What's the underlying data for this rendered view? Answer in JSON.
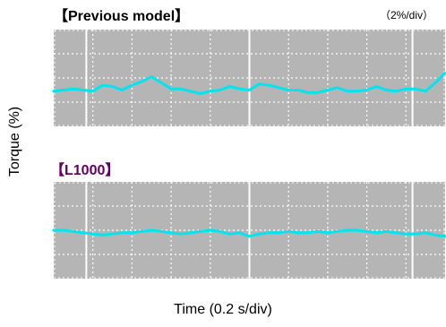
{
  "labels": {
    "scale": "（2%/div）",
    "y_axis": "Torque (%)",
    "x_axis": "Time (0.2 s/div)"
  },
  "colors": {
    "panel_bg": "#b5b5b5",
    "grid_major": "#ffffff",
    "trace": "#00e5f0",
    "l1000_title": "#660066"
  },
  "chart_data": [
    {
      "type": "line",
      "title": "【Previous model】",
      "xlabel": "Time (0.2 s/div)",
      "ylabel": "Torque (%)",
      "grid": true,
      "xlim": [
        0,
        10
      ],
      "ylim": [
        -5,
        3
      ],
      "x": [
        0,
        0.25,
        0.5,
        0.75,
        1,
        1.25,
        1.5,
        1.75,
        2,
        2.25,
        2.5,
        2.75,
        3,
        3.25,
        3.5,
        3.75,
        4,
        4.25,
        4.5,
        4.75,
        5,
        5.25,
        5.5,
        5.75,
        6,
        6.25,
        6.5,
        6.75,
        7,
        7.25,
        7.5,
        7.75,
        8,
        8.25,
        8.5,
        8.75,
        9,
        9.25,
        9.5,
        9.75,
        10
      ],
      "series": [
        {
          "values": [
            -2.1,
            -2.0,
            -1.9,
            -2.0,
            -2.1,
            -1.6,
            -1.7,
            -2.0,
            -1.6,
            -1.3,
            -0.9,
            -1.4,
            -1.9,
            -1.9,
            -2.1,
            -2.3,
            -2.1,
            -2.0,
            -1.7,
            -1.9,
            -2.0,
            -1.5,
            -1.6,
            -1.8,
            -2.0,
            -2.0,
            -2.2,
            -2.2,
            -2.0,
            -1.8,
            -2.1,
            -2.1,
            -2.0,
            -1.7,
            -2.0,
            -2.1,
            -1.9,
            -1.9,
            -2.1,
            -1.4,
            -0.6
          ]
        }
      ]
    },
    {
      "type": "line",
      "title": "【L1000】",
      "xlabel": "Time (0.2 s/div)",
      "ylabel": "Torque (%)",
      "grid": true,
      "xlim": [
        0,
        10
      ],
      "ylim": [
        -5,
        3
      ],
      "x": [
        0,
        0.25,
        0.5,
        0.75,
        1,
        1.25,
        1.5,
        1.75,
        2,
        2.25,
        2.5,
        2.75,
        3,
        3.25,
        3.5,
        3.75,
        4,
        4.25,
        4.5,
        4.75,
        5,
        5.25,
        5.5,
        5.75,
        6,
        6.25,
        6.5,
        6.75,
        7,
        7.25,
        7.5,
        7.75,
        8,
        8.25,
        8.5,
        8.75,
        9,
        9.25,
        9.5,
        9.75,
        10
      ],
      "series": [
        {
          "values": [
            -1.0,
            -1.0,
            -1.1,
            -1.2,
            -1.3,
            -1.4,
            -1.3,
            -1.2,
            -1.2,
            -1.1,
            -1.0,
            -1.1,
            -1.2,
            -1.3,
            -1.2,
            -1.1,
            -1.0,
            -1.1,
            -1.3,
            -1.2,
            -1.5,
            -1.3,
            -1.2,
            -1.2,
            -1.1,
            -1.2,
            -1.2,
            -1.1,
            -1.2,
            -1.1,
            -1.0,
            -1.0,
            -1.1,
            -1.2,
            -1.1,
            -1.2,
            -1.3,
            -1.3,
            -1.2,
            -1.4,
            -1.5
          ]
        }
      ]
    }
  ]
}
